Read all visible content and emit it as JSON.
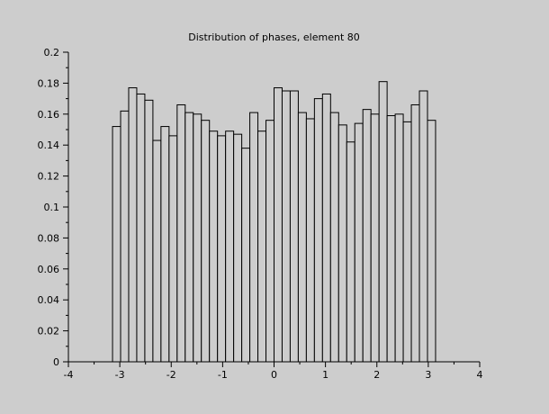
{
  "chart_data": {
    "type": "bar",
    "title": "Distribution of phases, element 80",
    "xlabel": "",
    "ylabel": "",
    "xlim": [
      -4,
      4
    ],
    "ylim": [
      0,
      0.2
    ],
    "grid": false,
    "bin_range": [
      -3.1416,
      3.1416
    ],
    "values": [
      0.152,
      0.162,
      0.177,
      0.173,
      0.169,
      0.143,
      0.152,
      0.146,
      0.166,
      0.161,
      0.16,
      0.156,
      0.149,
      0.146,
      0.149,
      0.147,
      0.138,
      0.161,
      0.149,
      0.156,
      0.177,
      0.175,
      0.175,
      0.161,
      0.157,
      0.17,
      0.173,
      0.161,
      0.153,
      0.142,
      0.154,
      0.163,
      0.16,
      0.181,
      0.159,
      0.16,
      0.155,
      0.166,
      0.175,
      0.156
    ],
    "xticks": [
      "-4",
      "-3",
      "-2",
      "-1",
      "0",
      "1",
      "2",
      "3",
      "4"
    ],
    "yticks": [
      "0",
      "0.02",
      "0.04",
      "0.06",
      "0.08",
      "0.1",
      "0.12",
      "0.14",
      "0.16",
      "0.18",
      "0.2"
    ],
    "bar_fill": "#cdcdcd",
    "bar_stroke": "#000000"
  }
}
